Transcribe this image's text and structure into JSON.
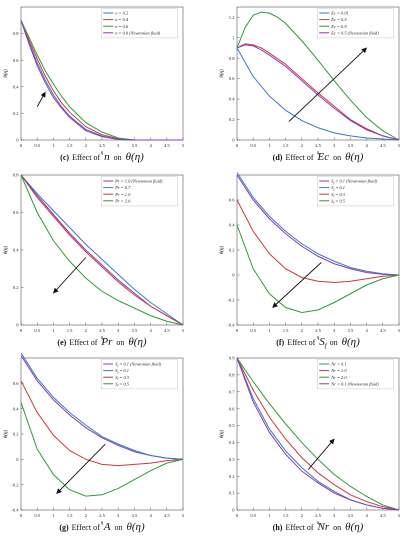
{
  "chart_data": [
    {
      "type": "line",
      "panel": "c",
      "caption": {
        "tag": "(c)",
        "mid": "Effect of",
        "param": "n",
        "on": "on",
        "fn": "θ(η)"
      },
      "xlabel": "η",
      "ylabel": "θ(η)",
      "xlim": [
        0,
        5
      ],
      "ylim": [
        0,
        1
      ],
      "xticks": [
        0,
        0.5,
        1,
        1.5,
        2,
        2.5,
        3,
        3.5,
        4,
        4.5,
        5
      ],
      "xtick_labels": [
        "0",
        "0.5",
        "1",
        "1.5",
        "2",
        "2.5",
        "3",
        "3.5",
        "4",
        "4.5",
        "5"
      ],
      "yticks": [
        0,
        0.2,
        0.4,
        0.6,
        0.8
      ],
      "ytick_labels": [
        "0",
        "0.2",
        "0.4",
        "0.6",
        "0.8"
      ],
      "legend": "top-right",
      "arrow": {
        "from": [
          0.5,
          0.25
        ],
        "to": [
          0.75,
          0.36
        ]
      },
      "series": [
        {
          "name": "n = 0.2",
          "color": "#3a78c8",
          "x": [
            0,
            0.25,
            0.5,
            0.75,
            1,
            1.25,
            1.5,
            2,
            2.5,
            3,
            3.5,
            4,
            5
          ],
          "y": [
            0.9,
            0.73,
            0.58,
            0.45,
            0.34,
            0.25,
            0.18,
            0.08,
            0.03,
            0.005,
            0,
            0,
            0
          ]
        },
        {
          "name": "n = 0.4",
          "color": "#c83a3a",
          "x": [
            0,
            0.25,
            0.5,
            0.75,
            1,
            1.25,
            1.5,
            2,
            2.5,
            3,
            3.5,
            4,
            5
          ],
          "y": [
            0.9,
            0.75,
            0.61,
            0.48,
            0.37,
            0.28,
            0.21,
            0.1,
            0.04,
            0.01,
            0,
            0,
            0
          ]
        },
        {
          "name": "n = 0.6",
          "color": "#2f9a3a",
          "x": [
            0,
            0.25,
            0.5,
            0.75,
            1,
            1.25,
            1.5,
            2,
            2.5,
            3,
            3.5,
            4,
            5
          ],
          "y": [
            0.9,
            0.77,
            0.64,
            0.52,
            0.42,
            0.33,
            0.25,
            0.13,
            0.06,
            0.015,
            0,
            0,
            0
          ]
        },
        {
          "name": "n = 0.0 (Newtonian fluid)",
          "color": "#8a3ab8",
          "x": [
            0,
            0.25,
            0.5,
            0.75,
            1,
            1.25,
            1.5,
            2,
            2.5,
            3,
            3.5,
            4,
            5
          ],
          "y": [
            0.9,
            0.72,
            0.56,
            0.43,
            0.32,
            0.24,
            0.17,
            0.07,
            0.025,
            0.005,
            0,
            0,
            0
          ]
        }
      ]
    },
    {
      "type": "line",
      "panel": "d",
      "caption": {
        "tag": "(d)",
        "mid": "Effect of",
        "param": "Ec",
        "on": "on",
        "fn": "θ(η)"
      },
      "xlabel": "η",
      "ylabel": "θ(η)",
      "xlim": [
        0,
        5
      ],
      "ylim": [
        0,
        1.3
      ],
      "xticks": [
        0,
        0.5,
        1,
        1.5,
        2,
        2.5,
        3,
        3.5,
        4,
        4.5,
        5
      ],
      "xtick_labels": [
        "0",
        "0.5",
        "1",
        "1.5",
        "2",
        "2.5",
        "3",
        "3.5",
        "4",
        "4.5",
        "5"
      ],
      "yticks": [
        0,
        0.2,
        0.4,
        0.6,
        0.8,
        1,
        1.2
      ],
      "ytick_labels": [
        "0",
        "0.2",
        "0.4",
        "0.6",
        "0.8",
        "1",
        "1.2"
      ],
      "legend": "top-right",
      "arrow": {
        "from": [
          1.6,
          0.18
        ],
        "to": [
          4.0,
          0.9
        ]
      },
      "series": [
        {
          "name": "Ec = 0.01",
          "color": "#3a78c8",
          "x": [
            0,
            0.5,
            1,
            1.5,
            2,
            2.5,
            3,
            3.5,
            4,
            4.5,
            5
          ],
          "y": [
            0.9,
            0.62,
            0.43,
            0.29,
            0.19,
            0.12,
            0.07,
            0.04,
            0.02,
            0.01,
            0
          ]
        },
        {
          "name": "Ec = 0.5",
          "color": "#c83a3a",
          "x": [
            0,
            0.25,
            0.5,
            0.75,
            1,
            1.5,
            2,
            2.5,
            3,
            3.5,
            4,
            4.5,
            5
          ],
          "y": [
            0.9,
            0.94,
            0.93,
            0.9,
            0.85,
            0.74,
            0.6,
            0.46,
            0.33,
            0.2,
            0.11,
            0.04,
            0
          ]
        },
        {
          "name": "Ec = 0.9",
          "color": "#2f9a3a",
          "x": [
            0,
            0.25,
            0.5,
            0.75,
            1,
            1.25,
            1.5,
            2,
            2.5,
            3,
            3.5,
            4,
            4.5,
            5
          ],
          "y": [
            0.9,
            1.1,
            1.22,
            1.25,
            1.24,
            1.2,
            1.14,
            0.97,
            0.78,
            0.58,
            0.39,
            0.22,
            0.09,
            0
          ]
        },
        {
          "name": "Ec = 0.5 (Newtonian fluid)",
          "color": "#8a3ab8",
          "x": [
            0,
            0.25,
            0.5,
            0.75,
            1,
            1.5,
            2,
            2.5,
            3,
            3.5,
            4,
            4.5,
            5
          ],
          "y": [
            0.9,
            0.93,
            0.92,
            0.88,
            0.83,
            0.72,
            0.58,
            0.44,
            0.31,
            0.19,
            0.1,
            0.04,
            0
          ]
        }
      ]
    },
    {
      "type": "line",
      "panel": "e",
      "caption": {
        "tag": "(e)",
        "mid": "Effect of",
        "param": "Pr",
        "on": "on",
        "fn": "θ(η)"
      },
      "xlabel": "η",
      "ylabel": "θ(η)",
      "xlim": [
        0,
        5
      ],
      "ylim": [
        0,
        0.8
      ],
      "xticks": [
        0,
        0.5,
        1,
        1.5,
        2,
        2.5,
        3,
        3.5,
        4,
        4.5,
        5
      ],
      "xtick_labels": [
        "0",
        "0.5",
        "1",
        "1.5",
        "2",
        "2.5",
        "3",
        "3.5",
        "4",
        "4.5",
        "5"
      ],
      "yticks": [
        0,
        0.2,
        0.4,
        0.6,
        0.8
      ],
      "ytick_labels": [
        "0",
        "0.2",
        "0.4",
        "0.6",
        "0.8"
      ],
      "legend": "top-right",
      "arrow": {
        "from": [
          2.0,
          0.36
        ],
        "to": [
          1.0,
          0.17
        ]
      },
      "series": [
        {
          "name": "Pr = 1.0 (Newtonian fluid)",
          "color": "#8a3ab8",
          "x": [
            0,
            0.5,
            1,
            1.5,
            2,
            2.5,
            3,
            3.5,
            4,
            4.5,
            5
          ],
          "y": [
            0.8,
            0.69,
            0.59,
            0.49,
            0.4,
            0.32,
            0.24,
            0.17,
            0.1,
            0.05,
            0
          ]
        },
        {
          "name": "Pr = 0.7",
          "color": "#3a78c8",
          "x": [
            0,
            0.5,
            1,
            1.5,
            2,
            2.5,
            3,
            3.5,
            4,
            4.5,
            5
          ],
          "y": [
            0.8,
            0.7,
            0.61,
            0.52,
            0.43,
            0.35,
            0.27,
            0.19,
            0.12,
            0.06,
            0
          ]
        },
        {
          "name": "Pr = 1.0",
          "color": "#c83a3a",
          "x": [
            0,
            0.5,
            1,
            1.5,
            2,
            2.5,
            3,
            3.5,
            4,
            4.5,
            5
          ],
          "y": [
            0.8,
            0.68,
            0.58,
            0.48,
            0.39,
            0.31,
            0.23,
            0.16,
            0.1,
            0.05,
            0
          ]
        },
        {
          "name": "Pr = 2.0",
          "color": "#2f9a3a",
          "x": [
            0,
            0.5,
            1,
            1.5,
            2,
            2.5,
            3,
            3.5,
            4,
            4.5,
            5
          ],
          "y": [
            0.8,
            0.6,
            0.45,
            0.34,
            0.25,
            0.18,
            0.13,
            0.09,
            0.05,
            0.02,
            0
          ]
        }
      ]
    },
    {
      "type": "line",
      "panel": "f",
      "caption": {
        "tag": "(f)",
        "mid": "Effect of",
        "param": "S",
        "param_sub": "f",
        "on": "on",
        "fn": "θ(η)"
      },
      "xlabel": "η",
      "ylabel": "θ(η)",
      "xlim": [
        0,
        5
      ],
      "ylim": [
        -0.4,
        0.8
      ],
      "xticks": [
        0,
        0.5,
        1,
        1.5,
        2,
        2.5,
        3,
        3.5,
        4,
        4.5,
        5
      ],
      "xtick_labels": [
        "0",
        "0.5",
        "1",
        "1.5",
        "2",
        "2.5",
        "3",
        "3.5",
        "4",
        "4.5",
        "5"
      ],
      "yticks": [
        -0.4,
        -0.2,
        0,
        0.2,
        0.4,
        0.6
      ],
      "ytick_labels": [
        "-0.4",
        "-0.2",
        "0",
        "0.2",
        "0.4",
        "0.6"
      ],
      "legend": "top-right",
      "arrow": {
        "from": [
          2.6,
          0.1
        ],
        "to": [
          1.1,
          -0.26
        ]
      },
      "series": [
        {
          "name": "S",
          "sub": "f",
          "suffix": " = 0.1 (Newtonian fluid)",
          "color": "#8a3ab8",
          "x": [
            0,
            0.5,
            1,
            1.5,
            2,
            2.5,
            3,
            3.5,
            4,
            4.5,
            5
          ],
          "y": [
            0.8,
            0.6,
            0.45,
            0.33,
            0.23,
            0.15,
            0.09,
            0.05,
            0.02,
            0.005,
            0
          ]
        },
        {
          "name": "S",
          "sub": "f",
          "suffix": " = 0.1",
          "color": "#3a78c8",
          "x": [
            0,
            0.5,
            1,
            1.5,
            2,
            2.5,
            3,
            3.5,
            4,
            4.5,
            5
          ],
          "y": [
            0.82,
            0.62,
            0.47,
            0.35,
            0.25,
            0.17,
            0.11,
            0.06,
            0.03,
            0.01,
            0
          ]
        },
        {
          "name": "S",
          "sub": "f",
          "suffix": " = 0.3",
          "color": "#c83a3a",
          "x": [
            0,
            0.5,
            1,
            1.5,
            2,
            2.5,
            3,
            3.5,
            4,
            4.5,
            5
          ],
          "y": [
            0.6,
            0.35,
            0.17,
            0.05,
            -0.02,
            -0.05,
            -0.06,
            -0.05,
            -0.03,
            -0.01,
            0
          ]
        },
        {
          "name": "S",
          "sub": "f",
          "suffix": " = 0.5",
          "color": "#2f9a3a",
          "x": [
            0,
            0.5,
            1,
            1.5,
            2,
            2.5,
            3,
            3.5,
            4,
            4.5,
            5
          ],
          "y": [
            0.4,
            0.05,
            -0.15,
            -0.26,
            -0.3,
            -0.28,
            -0.22,
            -0.15,
            -0.08,
            -0.03,
            0
          ]
        }
      ]
    },
    {
      "type": "line",
      "panel": "g",
      "caption": {
        "tag": "(g)",
        "mid": "Effect of",
        "param": "A",
        "on": "on",
        "fn": "θ(η)"
      },
      "xlabel": "η",
      "ylabel": "θ(η)",
      "xlim": [
        0,
        5
      ],
      "ylim": [
        -0.4,
        0.8
      ],
      "xticks": [
        0,
        0.5,
        1,
        1.5,
        2,
        2.5,
        3,
        3.5,
        4,
        4.5,
        5
      ],
      "xtick_labels": [
        "0",
        "0.5",
        "1",
        "1.5",
        "2",
        "2.5",
        "3",
        "3.5",
        "4",
        "4.5",
        "5"
      ],
      "yticks": [
        -0.4,
        -0.2,
        0,
        0.2,
        0.4,
        0.6
      ],
      "ytick_labels": [
        "-0.4",
        "-0.2",
        "0",
        "0.2",
        "0.4",
        "0.6"
      ],
      "legend": "top-right",
      "arrow": {
        "from": [
          2.6,
          0.12
        ],
        "to": [
          1.1,
          -0.27
        ]
      },
      "series": [
        {
          "name": "S",
          "sub": "f",
          "suffix": " = 0.1 (Newtonian fluid)",
          "color": "#8a3ab8",
          "x": [
            0,
            0.5,
            1,
            1.5,
            2,
            2.5,
            3,
            3.5,
            4,
            4.5,
            5
          ],
          "y": [
            0.82,
            0.62,
            0.47,
            0.35,
            0.25,
            0.17,
            0.11,
            0.06,
            0.03,
            0.01,
            0
          ]
        },
        {
          "name": "S",
          "sub": "f",
          "suffix": " = 0.1",
          "color": "#3a78c8",
          "x": [
            0,
            0.5,
            1,
            1.5,
            2,
            2.5,
            3,
            3.5,
            4,
            4.5,
            5
          ],
          "y": [
            0.84,
            0.64,
            0.49,
            0.37,
            0.27,
            0.18,
            0.12,
            0.07,
            0.03,
            0.01,
            0
          ]
        },
        {
          "name": "S",
          "sub": "f",
          "suffix": " = 0.3",
          "color": "#c83a3a",
          "x": [
            0,
            0.5,
            1,
            1.5,
            2,
            2.5,
            3,
            3.5,
            4,
            4.5,
            5
          ],
          "y": [
            0.62,
            0.37,
            0.19,
            0.07,
            0,
            -0.04,
            -0.05,
            -0.04,
            -0.03,
            -0.01,
            0
          ]
        },
        {
          "name": "S",
          "sub": "f",
          "suffix": " = 0.5",
          "color": "#2f9a3a",
          "x": [
            0,
            0.5,
            1,
            1.5,
            2,
            2.5,
            3,
            3.5,
            4,
            4.5,
            5
          ],
          "y": [
            0.45,
            0.08,
            -0.12,
            -0.24,
            -0.29,
            -0.28,
            -0.23,
            -0.16,
            -0.09,
            -0.03,
            0
          ]
        }
      ]
    },
    {
      "type": "line",
      "panel": "h",
      "caption": {
        "tag": "(h)",
        "mid": "Effect of",
        "param": "Nr",
        "on": "on",
        "fn": "θ(η)"
      },
      "xlabel": "η",
      "ylabel": "θ(η)",
      "xlim": [
        0,
        5
      ],
      "ylim": [
        0,
        0.9
      ],
      "xticks": [
        0,
        0.5,
        1,
        1.5,
        2,
        2.5,
        3,
        3.5,
        4,
        4.5,
        5
      ],
      "xtick_labels": [
        "0",
        "0.5",
        "1",
        "1.5",
        "2",
        "2.5",
        "3",
        "3.5",
        "4",
        "4.5",
        "5"
      ],
      "yticks": [
        0,
        0.1,
        0.2,
        0.3,
        0.4,
        0.5,
        0.6,
        0.7,
        0.8,
        0.9
      ],
      "ytick_labels": [
        "0",
        "0.1",
        "0.2",
        "0.3",
        "0.4",
        "0.5",
        "0.6",
        "0.7",
        "0.8",
        "0.9"
      ],
      "legend": "top-right",
      "arrow": {
        "from": [
          2.2,
          0.24
        ],
        "to": [
          3.0,
          0.42
        ]
      },
      "series": [
        {
          "name": "Nr = 0.1",
          "color": "#3a78c8",
          "x": [
            0,
            0.5,
            1,
            1.5,
            2,
            2.5,
            3,
            3.5,
            4,
            4.5,
            5
          ],
          "y": [
            0.9,
            0.66,
            0.48,
            0.35,
            0.25,
            0.17,
            0.11,
            0.06,
            0.03,
            0.01,
            0
          ]
        },
        {
          "name": "Nr = 1.0",
          "color": "#c83a3a",
          "x": [
            0,
            0.5,
            1,
            1.5,
            2,
            2.5,
            3,
            3.5,
            4,
            4.5,
            5
          ],
          "y": [
            0.9,
            0.71,
            0.55,
            0.42,
            0.31,
            0.22,
            0.15,
            0.09,
            0.05,
            0.02,
            0
          ]
        },
        {
          "name": "Nr = 2.0",
          "color": "#2f9a3a",
          "x": [
            0,
            0.5,
            1,
            1.5,
            2,
            2.5,
            3,
            3.5,
            4,
            4.5,
            5
          ],
          "y": [
            0.9,
            0.76,
            0.63,
            0.51,
            0.4,
            0.3,
            0.21,
            0.14,
            0.08,
            0.03,
            0
          ]
        },
        {
          "name": "Nr = 0.1 (Newtonian fluid)",
          "color": "#8a3ab8",
          "x": [
            0,
            0.5,
            1,
            1.5,
            2,
            2.5,
            3,
            3.5,
            4,
            4.5,
            5
          ],
          "y": [
            0.9,
            0.64,
            0.46,
            0.33,
            0.23,
            0.16,
            0.1,
            0.06,
            0.03,
            0.01,
            0
          ]
        }
      ]
    }
  ]
}
